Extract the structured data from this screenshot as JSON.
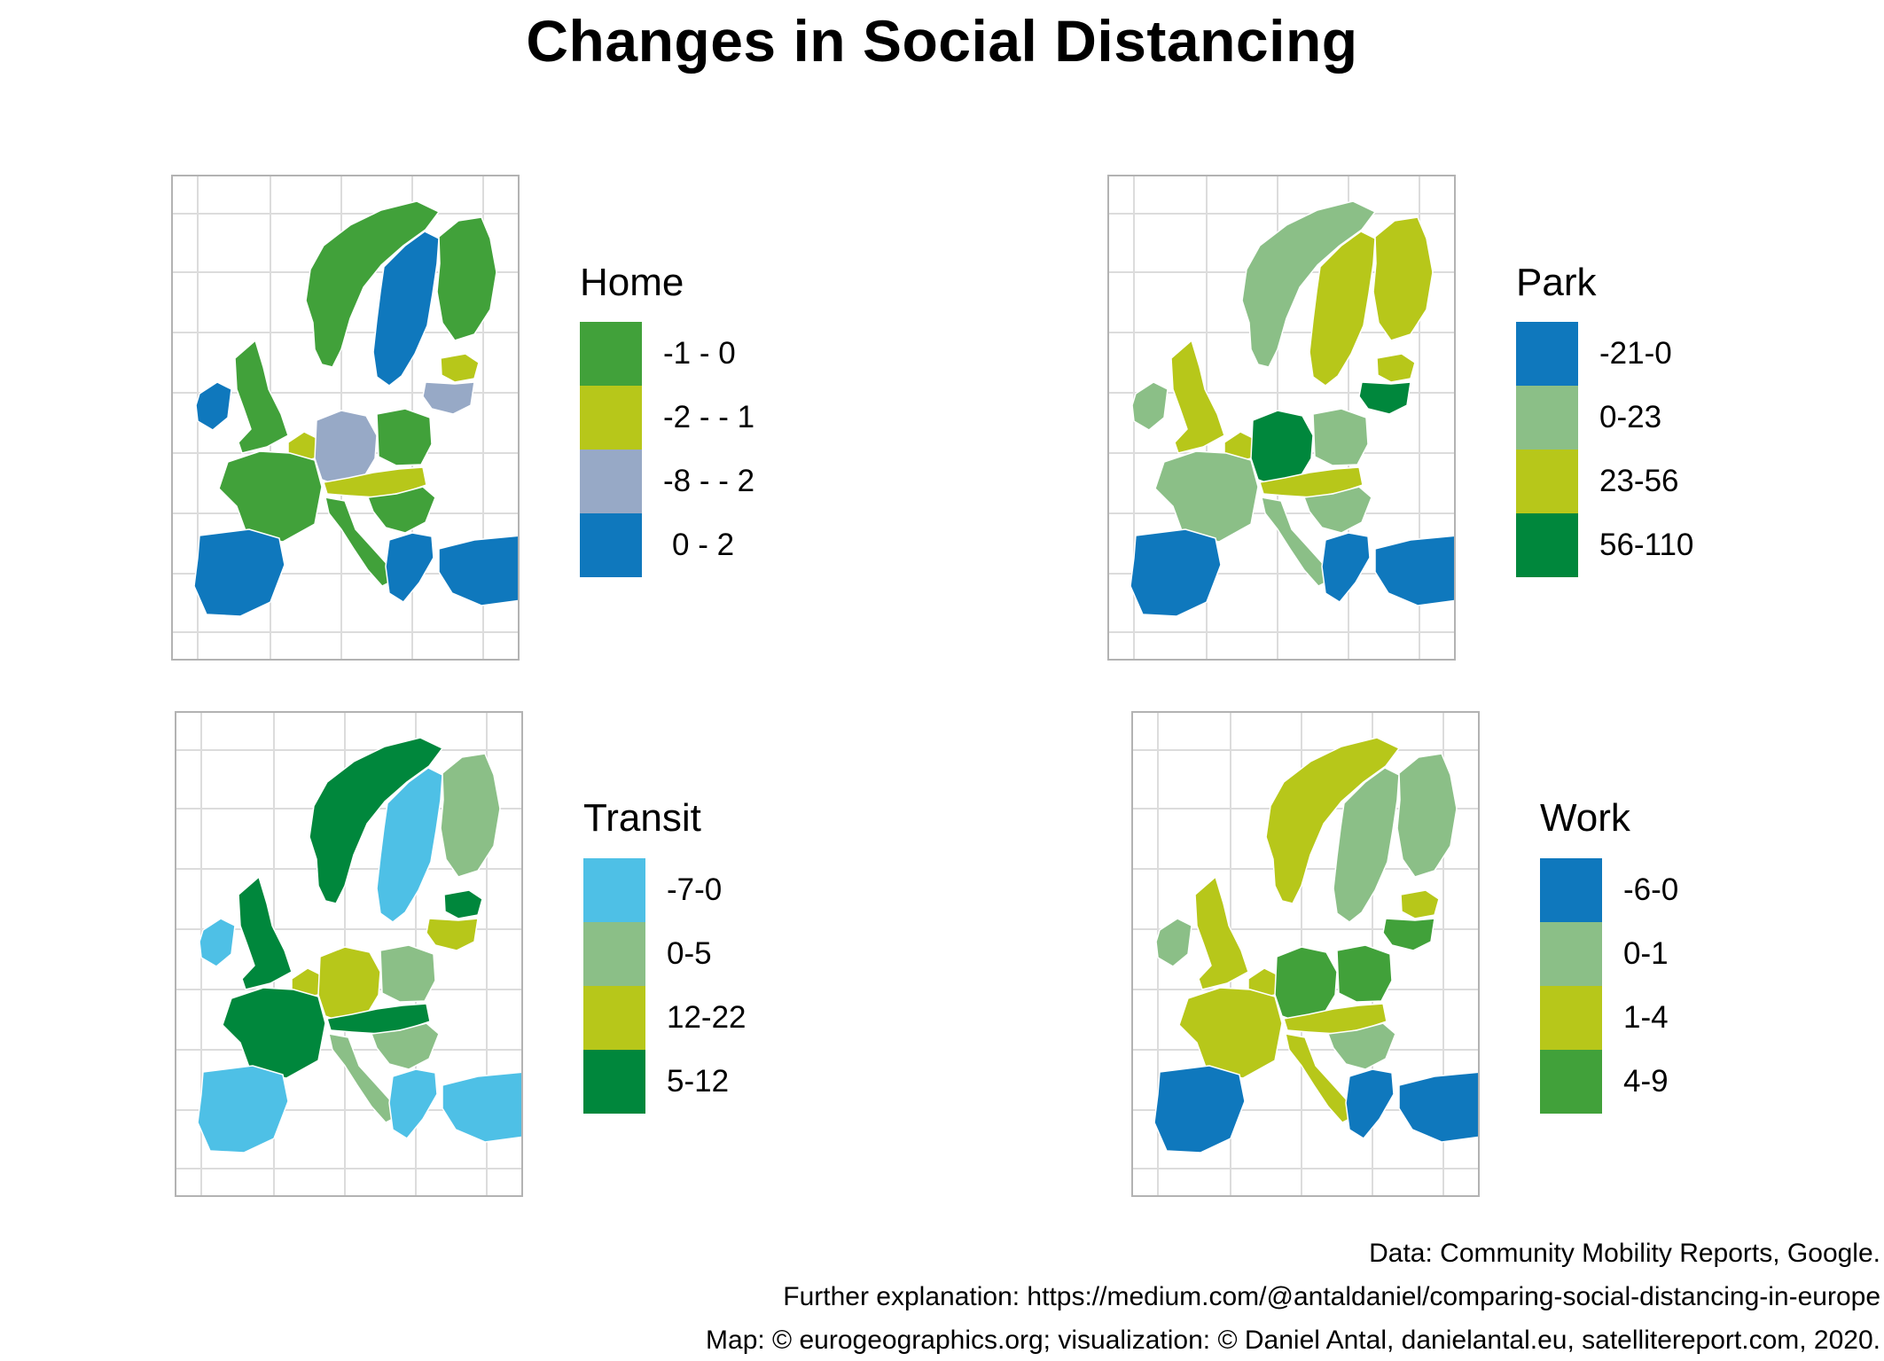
{
  "title": "Changes in Social Distancing",
  "panels": [
    {
      "legend_title": "Home",
      "legend": [
        {
          "label": "-1 - 0",
          "color": "#41a13a"
        },
        {
          "label": "-2 - - 1",
          "color": "#b7c71a"
        },
        {
          "label": "-8 - - 2",
          "color": "#97a9c6"
        },
        {
          "label": "0 - 2",
          "color": "#0f78bd"
        }
      ],
      "regions": {
        "north": 0,
        "nordic_east": 0,
        "nordic_west": 3,
        "baltic_n": 1,
        "baltic_s": 2,
        "uk": 0,
        "ireland": 3,
        "benelux": 1,
        "central": 2,
        "east": 0,
        "alps": 1,
        "balkans": 0,
        "west": 0,
        "italy": 0,
        "iberia": 3,
        "southeast": 3,
        "turkey": 3
      }
    },
    {
      "legend_title": "Park",
      "legend": [
        {
          "label": "-21-0",
          "color": "#0f78bd"
        },
        {
          "label": "0-23",
          "color": "#8bbf87"
        },
        {
          "label": "23-56",
          "color": "#b7c71a"
        },
        {
          "label": "56-110",
          "color": "#00873c"
        }
      ],
      "regions": {
        "north": 1,
        "nordic_east": 2,
        "nordic_west": 2,
        "baltic_n": 2,
        "baltic_s": 3,
        "uk": 2,
        "ireland": 1,
        "benelux": 2,
        "central": 3,
        "east": 1,
        "alps": 2,
        "balkans": 1,
        "west": 1,
        "italy": 1,
        "iberia": 0,
        "southeast": 0,
        "turkey": 0
      }
    },
    {
      "legend_title": "Transit",
      "legend": [
        {
          "label": "-7-0",
          "color": "#4ec0e6"
        },
        {
          "label": "0-5",
          "color": "#8bbf87"
        },
        {
          "label": "12-22",
          "color": "#b7c71a"
        },
        {
          "label": "5-12",
          "color": "#00873c"
        }
      ],
      "regions": {
        "north": 3,
        "nordic_east": 1,
        "nordic_west": 0,
        "baltic_n": 3,
        "baltic_s": 2,
        "uk": 3,
        "ireland": 0,
        "benelux": 2,
        "central": 2,
        "east": 1,
        "alps": 3,
        "balkans": 1,
        "west": 3,
        "italy": 1,
        "iberia": 0,
        "southeast": 0,
        "turkey": 0
      }
    },
    {
      "legend_title": "Work",
      "legend": [
        {
          "label": "-6-0",
          "color": "#0f78bd"
        },
        {
          "label": "0-1",
          "color": "#8bbf87"
        },
        {
          "label": "1-4",
          "color": "#b7c71a"
        },
        {
          "label": "4-9",
          "color": "#41a13a"
        }
      ],
      "regions": {
        "north": 2,
        "nordic_east": 1,
        "nordic_west": 1,
        "baltic_n": 2,
        "baltic_s": 3,
        "uk": 2,
        "ireland": 1,
        "benelux": 2,
        "central": 3,
        "east": 3,
        "alps": 2,
        "balkans": 1,
        "west": 2,
        "italy": 2,
        "iberia": 0,
        "southeast": 0,
        "turkey": 0
      }
    }
  ],
  "caption": [
    "Data: Community Mobility Reports, Google.",
    "Further explanation: https://medium.com/@antaldaniel/comparing-social-distancing-in-europe",
    "Map: © eurogeographics.org; visualization: © Daniel Antal, danielantal.eu, satellitereport.com, 2020."
  ]
}
